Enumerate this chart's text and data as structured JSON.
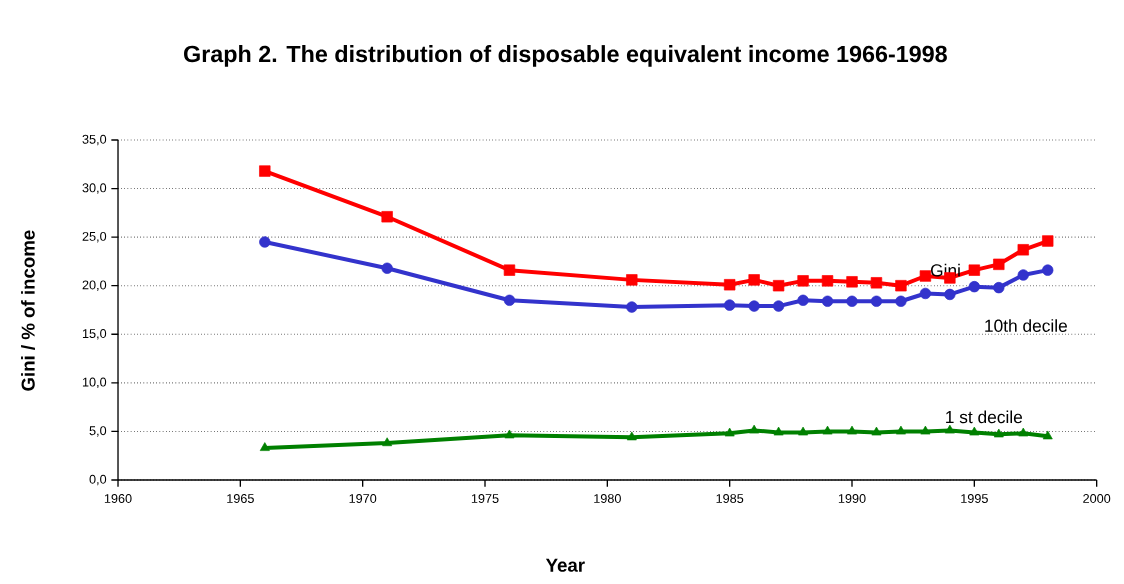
{
  "chart_data": {
    "type": "line",
    "title": "Graph 2. The distribution of disposable equivalent income 1966-1998",
    "xlabel": "Year",
    "ylabel": "Gini  /  % of income",
    "x": [
      1966,
      1971,
      1976,
      1981,
      1985,
      1986,
      1987,
      1988,
      1989,
      1990,
      1991,
      1992,
      1993,
      1994,
      1995,
      1996,
      1997,
      1998
    ],
    "series": [
      {
        "name": "Gini",
        "color": "#ff0000",
        "marker": "square",
        "values": [
          31.8,
          27.1,
          21.6,
          20.6,
          20.1,
          20.6,
          20.0,
          20.5,
          20.5,
          20.4,
          20.3,
          20.0,
          21.0,
          20.8,
          21.6,
          22.2,
          23.7,
          24.6
        ]
      },
      {
        "name": "10th decile",
        "color": "#3333cc",
        "marker": "circle",
        "values": [
          24.5,
          21.8,
          18.5,
          17.8,
          18.0,
          17.9,
          17.9,
          18.5,
          18.4,
          18.4,
          18.4,
          18.4,
          19.2,
          19.1,
          19.9,
          19.8,
          21.1,
          21.6
        ]
      },
      {
        "name": "1 st decile",
        "color": "#008000",
        "marker": "triangle",
        "values": [
          3.3,
          3.8,
          4.6,
          4.4,
          4.8,
          5.1,
          4.9,
          4.9,
          5.0,
          5.0,
          4.9,
          5.0,
          5.0,
          5.1,
          4.9,
          4.7,
          4.8,
          4.5
        ]
      }
    ],
    "xlim": [
      1960,
      2000
    ],
    "xticks": [
      1960,
      1965,
      1970,
      1975,
      1980,
      1985,
      1990,
      1995,
      2000
    ],
    "ylim": [
      0,
      35
    ],
    "yticks": [
      {
        "value": 0,
        "label": "0,0"
      },
      {
        "value": 5,
        "label": "5,0"
      },
      {
        "value": 10,
        "label": "10,0"
      },
      {
        "value": 15,
        "label": "15,0"
      },
      {
        "value": 20,
        "label": "20,0"
      },
      {
        "value": 25,
        "label": "25,0"
      },
      {
        "value": 30,
        "label": "30,0"
      },
      {
        "value": 35,
        "label": "35,0"
      }
    ],
    "grid": "y"
  }
}
